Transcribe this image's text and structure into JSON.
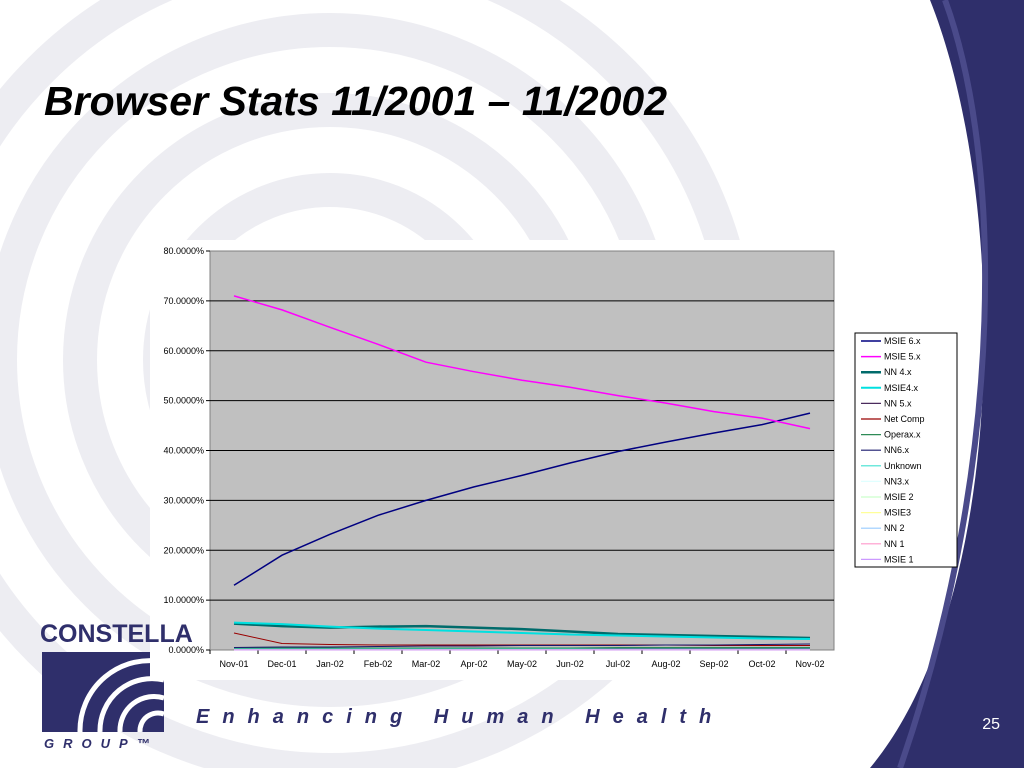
{
  "slide": {
    "title": "Browser Stats 11/2001 – 11/2002",
    "slide_number": "25"
  },
  "branding": {
    "logo_word": "CONSTELLA",
    "logo_sub": "GROUP™",
    "tagline": "Enhancing Human Health",
    "brand_color": "#2f2f6b"
  },
  "chart_data": {
    "type": "line",
    "x": [
      "Nov-01",
      "Dec-01",
      "Jan-02",
      "Feb-02",
      "Mar-02",
      "Apr-02",
      "May-02",
      "Jun-02",
      "Jul-02",
      "Aug-02",
      "Sep-02",
      "Oct-02",
      "Nov-02"
    ],
    "ylim": [
      0,
      80
    ],
    "y_ticks": [
      "0.0000%",
      "10.0000%",
      "20.0000%",
      "30.0000%",
      "40.0000%",
      "50.0000%",
      "60.0000%",
      "70.0000%",
      "80.0000%"
    ],
    "grid": true,
    "plot_background": "#c0c0c0",
    "legend_position": "right",
    "series": [
      {
        "name": "MSIE 6.x",
        "color": "#000080",
        "values": [
          13.0,
          19.0,
          23.2,
          27.0,
          30.0,
          32.7,
          35.0,
          37.5,
          39.8,
          41.7,
          43.5,
          45.2,
          47.5
        ]
      },
      {
        "name": "MSIE 5.x",
        "color": "#ff00ff",
        "values": [
          71.0,
          68.2,
          64.7,
          61.3,
          57.7,
          55.8,
          54.1,
          52.7,
          51.0,
          49.5,
          47.8,
          46.5,
          44.4
        ]
      },
      {
        "name": "NN 4.x",
        "color": "#006b6b",
        "values": [
          5.3,
          4.8,
          4.5,
          4.7,
          4.8,
          4.5,
          4.2,
          3.7,
          3.2,
          3.0,
          2.8,
          2.6,
          2.4
        ]
      },
      {
        "name": "MSIE4.x",
        "color": "#00e0e0",
        "values": [
          5.5,
          5.2,
          4.7,
          4.3,
          4.0,
          3.7,
          3.4,
          3.1,
          2.9,
          2.7,
          2.5,
          2.3,
          2.2
        ]
      },
      {
        "name": "NN 5.x",
        "color": "#4b2b5e",
        "values": [
          0.3,
          0.3,
          0.3,
          0.3,
          0.3,
          0.3,
          0.3,
          0.3,
          0.3,
          0.3,
          0.3,
          0.3,
          0.3
        ]
      },
      {
        "name": "Net Comp",
        "color": "#990000",
        "values": [
          3.4,
          1.3,
          1.1,
          1.0,
          1.0,
          1.0,
          1.0,
          1.0,
          1.0,
          1.0,
          0.9,
          0.9,
          0.9
        ]
      },
      {
        "name": "Operax.x",
        "color": "#2e8b57",
        "values": [
          0.4,
          0.4,
          0.4,
          0.4,
          0.4,
          0.4,
          0.4,
          0.4,
          0.5,
          0.5,
          0.5,
          0.5,
          0.5
        ]
      },
      {
        "name": "NN6.x",
        "color": "#1a1a6e",
        "values": [
          0.5,
          0.6,
          0.6,
          0.7,
          0.8,
          0.8,
          0.9,
          0.9,
          0.9,
          1.0,
          1.0,
          1.1,
          1.2
        ]
      },
      {
        "name": "Unknown",
        "color": "#40e0d0",
        "values": [
          0.2,
          0.2,
          0.2,
          0.2,
          0.2,
          0.2,
          0.2,
          0.2,
          0.2,
          0.2,
          0.2,
          0.2,
          0.2
        ]
      },
      {
        "name": "NN3.x",
        "color": "#e0ffff",
        "values": [
          0.1,
          0.1,
          0.1,
          0.1,
          0.1,
          0.1,
          0.1,
          0.1,
          0.1,
          0.1,
          0.1,
          0.1,
          0.1
        ]
      },
      {
        "name": "MSIE 2",
        "color": "#ccffcc",
        "values": [
          0.05,
          0.05,
          0.05,
          0.05,
          0.05,
          0.05,
          0.05,
          0.05,
          0.05,
          0.05,
          0.05,
          0.05,
          0.05
        ]
      },
      {
        "name": "MSIE3",
        "color": "#ffff99",
        "values": [
          0.1,
          0.1,
          0.1,
          0.1,
          0.1,
          0.1,
          0.1,
          0.1,
          0.1,
          0.1,
          0.1,
          0.1,
          0.1
        ]
      },
      {
        "name": "NN 2",
        "color": "#99ccff",
        "values": [
          0.05,
          0.05,
          0.05,
          0.05,
          0.05,
          0.05,
          0.05,
          0.05,
          0.05,
          0.05,
          0.05,
          0.05,
          0.05
        ]
      },
      {
        "name": "NN 1",
        "color": "#ff99cc",
        "values": [
          0.02,
          0.02,
          0.02,
          0.02,
          0.02,
          0.02,
          0.02,
          0.02,
          0.02,
          0.02,
          0.02,
          0.02,
          0.02
        ]
      },
      {
        "name": "MSIE 1",
        "color": "#cc99ff",
        "values": [
          0.02,
          0.02,
          0.02,
          0.02,
          0.02,
          0.02,
          0.02,
          0.02,
          0.02,
          0.02,
          0.02,
          0.02,
          0.02
        ]
      }
    ]
  }
}
